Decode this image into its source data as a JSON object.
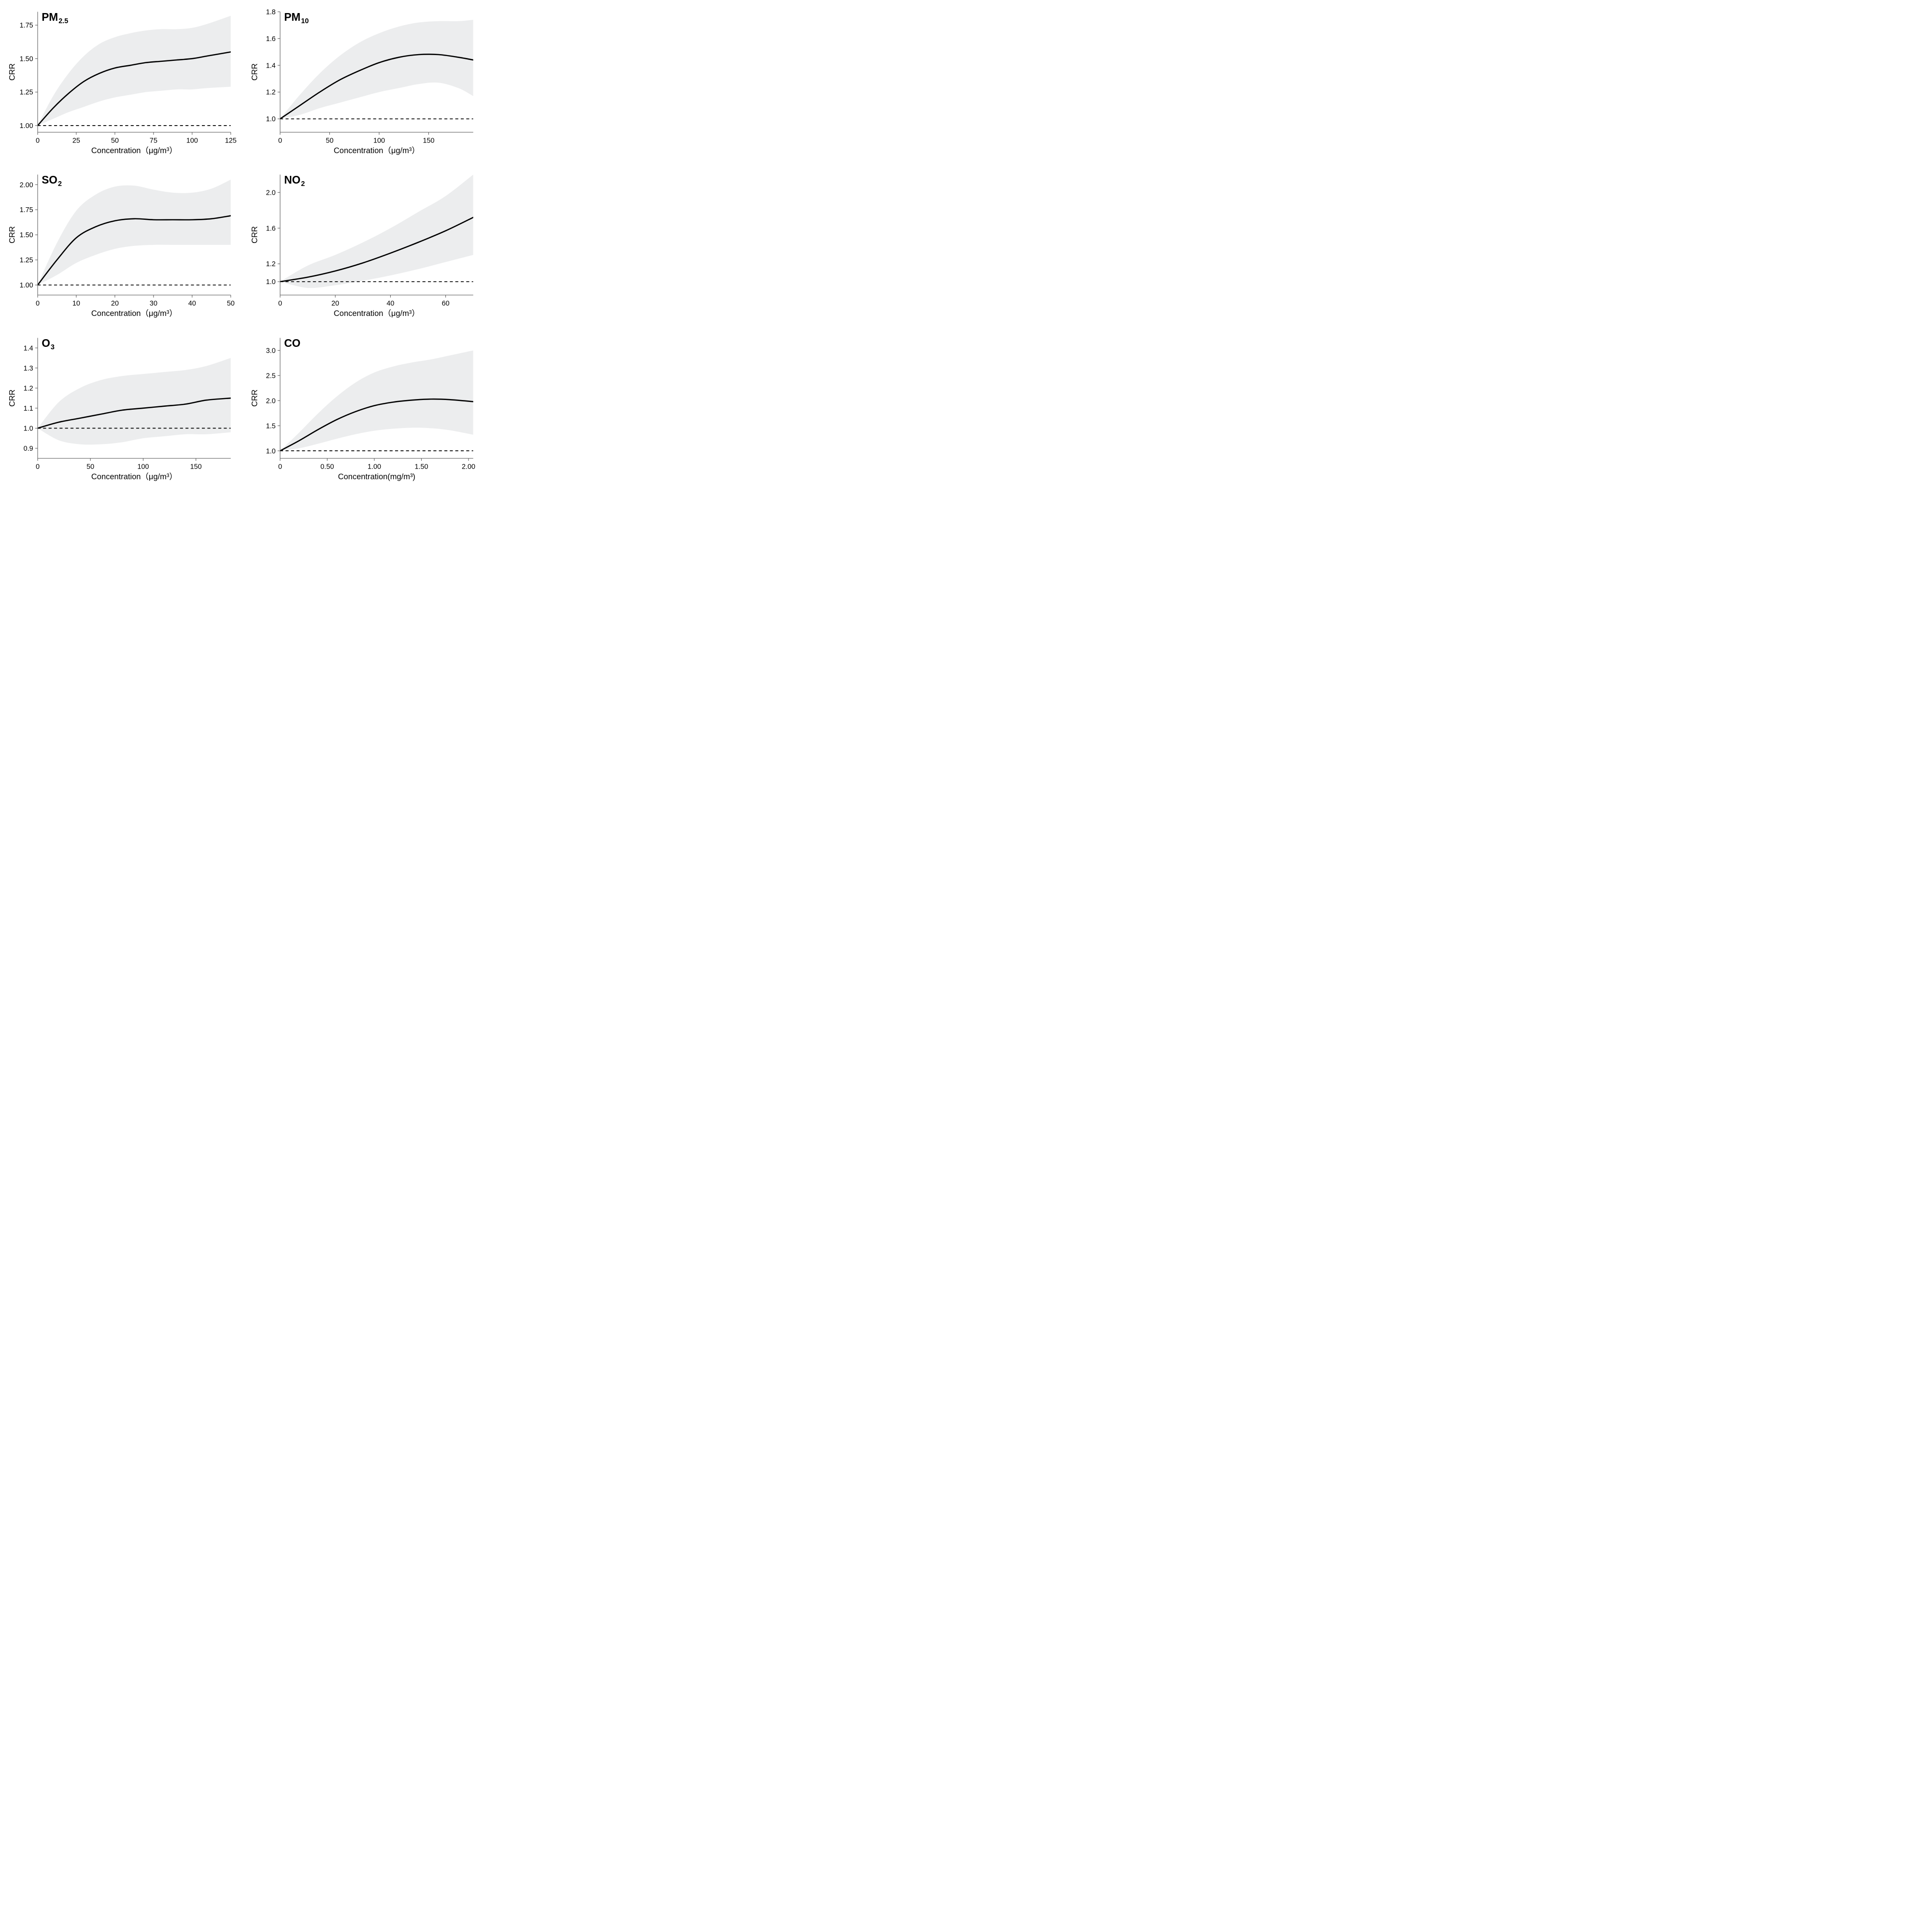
{
  "global": {
    "background_color": "#ffffff",
    "band_color": "#ecedee",
    "line_color": "#000000",
    "line_width": 2.5,
    "dash_color": "#000000",
    "dash_pattern": "6,5",
    "axis_tick_color": "#555555",
    "axis_tick_len": 5,
    "axis_border_color": "#555555",
    "text_color": "#000000",
    "tick_fontsize": 14,
    "label_fontsize": 16,
    "title_fontsize": 22,
    "grid_cols": 2,
    "grid_rows": 3,
    "ylabel": "CRR"
  },
  "panels": [
    {
      "key": "pm25",
      "title_main": "PM",
      "title_sub": "2.5",
      "xlabel": "Concentration（μg/m³）",
      "xlim": [
        0,
        125
      ],
      "xticks": [
        0,
        25,
        50,
        75,
        100,
        125
      ],
      "xtick_labels": [
        "0",
        "25",
        "50",
        "75",
        "100",
        "125"
      ],
      "ylim": [
        0.95,
        1.85
      ],
      "yticks": [
        1.0,
        1.25,
        1.5,
        1.75
      ],
      "ytick_labels": [
        "1.00",
        "1.25",
        "1.50",
        "1.75"
      ],
      "ref_y": 1.0,
      "curve_x": [
        0,
        10,
        20,
        30,
        40,
        50,
        60,
        70,
        80,
        90,
        100,
        110,
        125
      ],
      "curve_y": [
        1.0,
        1.13,
        1.24,
        1.33,
        1.39,
        1.43,
        1.45,
        1.47,
        1.48,
        1.49,
        1.5,
        1.52,
        1.55
      ],
      "ci_lo": [
        1.0,
        1.05,
        1.1,
        1.14,
        1.18,
        1.21,
        1.23,
        1.25,
        1.26,
        1.27,
        1.27,
        1.28,
        1.29
      ],
      "ci_hi": [
        1.0,
        1.22,
        1.39,
        1.52,
        1.61,
        1.66,
        1.69,
        1.71,
        1.72,
        1.72,
        1.73,
        1.76,
        1.82
      ]
    },
    {
      "key": "pm10",
      "title_main": "PM",
      "title_sub": "10",
      "xlabel": "Concentration（μg/m³）",
      "xlim": [
        0,
        195
      ],
      "xticks": [
        0,
        50,
        100,
        150
      ],
      "xtick_labels": [
        "0",
        "50",
        "100",
        "150"
      ],
      "ylim": [
        0.9,
        1.8
      ],
      "yticks": [
        1.0,
        1.2,
        1.4,
        1.6,
        1.8
      ],
      "ytick_labels": [
        "1.0",
        "1.2",
        "1.4",
        "1.6",
        "1.8"
      ],
      "ref_y": 1.0,
      "curve_x": [
        0,
        20,
        40,
        60,
        80,
        100,
        120,
        140,
        160,
        180,
        195
      ],
      "curve_y": [
        1.0,
        1.1,
        1.2,
        1.29,
        1.36,
        1.42,
        1.46,
        1.48,
        1.48,
        1.46,
        1.44
      ],
      "ci_lo": [
        1.0,
        1.03,
        1.08,
        1.12,
        1.16,
        1.2,
        1.23,
        1.26,
        1.27,
        1.23,
        1.17
      ],
      "ci_hi": [
        1.0,
        1.18,
        1.34,
        1.47,
        1.57,
        1.64,
        1.69,
        1.72,
        1.73,
        1.73,
        1.74
      ]
    },
    {
      "key": "so2",
      "title_main": "SO",
      "title_sub": "2",
      "xlabel": "Concentration（μg/m³）",
      "xlim": [
        0,
        50
      ],
      "xticks": [
        0,
        10,
        20,
        30,
        40,
        50
      ],
      "xtick_labels": [
        "0",
        "10",
        "20",
        "30",
        "40",
        "50"
      ],
      "ylim": [
        0.9,
        2.1
      ],
      "yticks": [
        1.0,
        1.25,
        1.5,
        1.75,
        2.0
      ],
      "ytick_labels": [
        "1.00",
        "1.25",
        "1.50",
        "1.75",
        "2.00"
      ],
      "ref_y": 1.0,
      "curve_x": [
        0,
        5,
        10,
        15,
        20,
        25,
        30,
        35,
        40,
        45,
        50
      ],
      "curve_y": [
        1.0,
        1.25,
        1.47,
        1.58,
        1.64,
        1.66,
        1.65,
        1.65,
        1.65,
        1.66,
        1.69
      ],
      "ci_lo": [
        1.0,
        1.1,
        1.22,
        1.3,
        1.36,
        1.39,
        1.4,
        1.4,
        1.4,
        1.4,
        1.4
      ],
      "ci_hi": [
        1.0,
        1.42,
        1.74,
        1.9,
        1.98,
        1.99,
        1.95,
        1.92,
        1.92,
        1.96,
        2.05
      ]
    },
    {
      "key": "no2",
      "title_main": "NO",
      "title_sub": "2",
      "xlabel": "Concentration（μg/m³）",
      "xlim": [
        0,
        70
      ],
      "xticks": [
        0,
        20,
        40,
        60
      ],
      "xtick_labels": [
        "0",
        "20",
        "40",
        "60"
      ],
      "ylim": [
        0.85,
        2.2
      ],
      "yticks": [
        1.0,
        1.2,
        1.6,
        2.0
      ],
      "ytick_labels": [
        "1.0",
        "1.2",
        "1.6",
        "2.0"
      ],
      "ref_y": 1.0,
      "curve_x": [
        0,
        10,
        20,
        30,
        40,
        50,
        60,
        70
      ],
      "curve_y": [
        1.0,
        1.05,
        1.12,
        1.21,
        1.32,
        1.44,
        1.57,
        1.72
      ],
      "ci_lo": [
        1.0,
        0.93,
        0.96,
        1.01,
        1.07,
        1.14,
        1.22,
        1.3
      ],
      "ci_hi": [
        1.0,
        1.18,
        1.3,
        1.44,
        1.6,
        1.78,
        1.96,
        2.2
      ]
    },
    {
      "key": "o3",
      "title_main": "O",
      "title_sub": "3",
      "xlabel": "Concentration（μg/m³）",
      "xlim": [
        0,
        183
      ],
      "xticks": [
        0,
        50,
        100,
        150
      ],
      "xtick_labels": [
        "0",
        "50",
        "100",
        "150"
      ],
      "ylim": [
        0.85,
        1.45
      ],
      "yticks": [
        0.9,
        1.0,
        1.1,
        1.2,
        1.3,
        1.4
      ],
      "ytick_labels": [
        "0.9",
        "1.0",
        "1.1",
        "1.2",
        "1.3",
        "1.4"
      ],
      "ref_y": 1.0,
      "curve_x": [
        0,
        20,
        40,
        60,
        80,
        100,
        120,
        140,
        160,
        183
      ],
      "curve_y": [
        1.0,
        1.03,
        1.05,
        1.07,
        1.09,
        1.1,
        1.11,
        1.12,
        1.14,
        1.15
      ],
      "ci_lo": [
        1.0,
        0.94,
        0.92,
        0.92,
        0.93,
        0.95,
        0.96,
        0.97,
        0.97,
        0.98
      ],
      "ci_hi": [
        1.0,
        1.13,
        1.2,
        1.24,
        1.26,
        1.27,
        1.28,
        1.29,
        1.31,
        1.35
      ]
    },
    {
      "key": "co",
      "title_main": "CO",
      "title_sub": "",
      "xlabel": "Concentration(mg/m³)",
      "xlim": [
        0,
        2.05
      ],
      "xticks": [
        0,
        0.5,
        1.0,
        1.5,
        2.0
      ],
      "xtick_labels": [
        "0",
        "0.50",
        "1.00",
        "1.50",
        "2.00"
      ],
      "ylim": [
        0.85,
        3.25
      ],
      "yticks": [
        1.0,
        1.5,
        2.0,
        2.5,
        3.0
      ],
      "ytick_labels": [
        "1.0",
        "1.5",
        "2.0",
        "2.5",
        "3.0"
      ],
      "ref_y": 1.0,
      "curve_x": [
        0,
        0.2,
        0.4,
        0.6,
        0.8,
        1.0,
        1.2,
        1.4,
        1.6,
        1.8,
        2.05
      ],
      "curve_y": [
        1.0,
        1.2,
        1.42,
        1.62,
        1.78,
        1.9,
        1.97,
        2.01,
        2.03,
        2.02,
        1.98
      ],
      "ci_lo": [
        1.0,
        1.05,
        1.14,
        1.24,
        1.33,
        1.4,
        1.44,
        1.46,
        1.45,
        1.41,
        1.32
      ],
      "ci_hi": [
        1.0,
        1.36,
        1.74,
        2.08,
        2.36,
        2.56,
        2.68,
        2.76,
        2.82,
        2.9,
        3.0
      ]
    }
  ]
}
